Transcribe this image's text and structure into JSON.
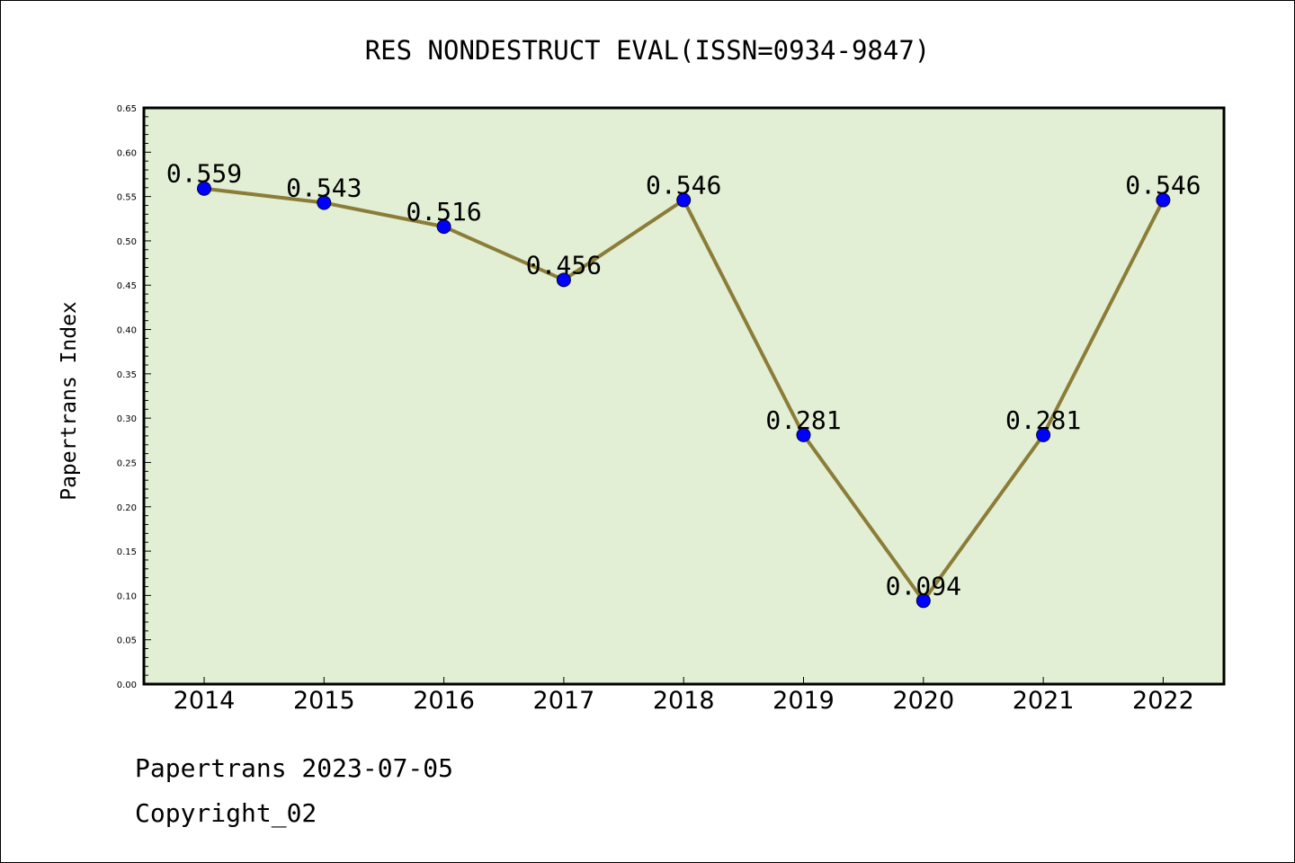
{
  "chart_data": {
    "type": "line",
    "title": "RES NONDESTRUCT EVAL(ISSN=0934-9847)",
    "xlabel": "",
    "ylabel": "Papertrans Index",
    "categories": [
      "2014",
      "2015",
      "2016",
      "2017",
      "2018",
      "2019",
      "2020",
      "2021",
      "2022"
    ],
    "series": [
      {
        "values": [
          0.559,
          0.543,
          0.516,
          0.456,
          0.546,
          0.281,
          0.094,
          0.281,
          0.546
        ]
      }
    ],
    "data_labels": [
      "0.559",
      "0.543",
      "0.516",
      "0.456",
      "0.546",
      "0.281",
      "0.094",
      "0.281",
      "0.546"
    ],
    "ylim": [
      0,
      0.65
    ],
    "yticks": [
      "0.00",
      "0.05",
      "0.10",
      "0.15",
      "0.20",
      "0.25",
      "0.30",
      "0.35",
      "0.40",
      "0.45",
      "0.50",
      "0.55",
      "0.60",
      "0.65"
    ],
    "grid": false,
    "colors": {
      "plot_background": "#e2efd5",
      "line": "#8b7d37",
      "marker": "#0000ff"
    }
  },
  "footer": {
    "line1": "Papertrans 2023-07-05",
    "line2": "Copyright_02"
  }
}
